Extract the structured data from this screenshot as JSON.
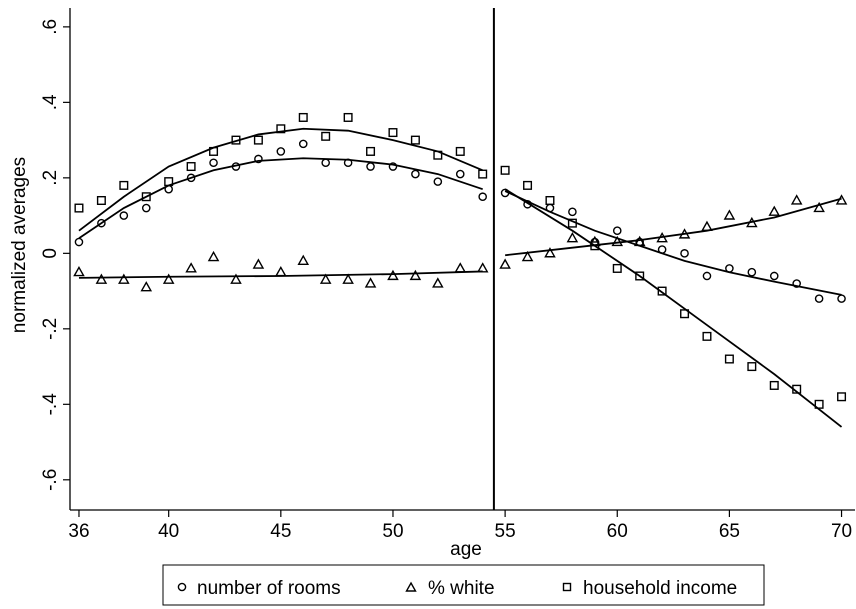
{
  "chart_data": {
    "type": "scatter",
    "xlabel": "age",
    "ylabel": "normalized averages",
    "xlim": [
      35.6,
      70.6
    ],
    "ylim": [
      -0.68,
      0.65
    ],
    "x_ticks": [
      40,
      45,
      50,
      55,
      60,
      65,
      70
    ],
    "x_tick_labels": [
      "40",
      "45",
      "50",
      "55",
      "60",
      "65",
      "70"
    ],
    "x_start_label": "36",
    "y_ticks": [
      -0.6,
      -0.4,
      -0.2,
      0,
      0.2,
      0.4,
      0.6
    ],
    "y_tick_labels": [
      "-.6",
      "-.4",
      "-.2",
      "0",
      ".2",
      ".4",
      ".6"
    ],
    "cutoff_x": 54.5,
    "grid": false,
    "legend_position": "bottom",
    "series": [
      {
        "name": "number of rooms",
        "marker": "circle",
        "x": [
          36,
          37,
          38,
          39,
          40,
          41,
          42,
          43,
          44,
          45,
          46,
          47,
          48,
          49,
          50,
          51,
          52,
          53,
          54,
          55,
          56,
          57,
          58,
          59,
          60,
          61,
          62,
          63,
          64,
          65,
          66,
          67,
          68,
          69,
          70
        ],
        "y": [
          0.03,
          0.08,
          0.1,
          0.12,
          0.17,
          0.2,
          0.24,
          0.23,
          0.25,
          0.27,
          0.29,
          0.24,
          0.24,
          0.23,
          0.23,
          0.21,
          0.19,
          0.21,
          0.15,
          0.16,
          0.13,
          0.12,
          0.11,
          0.03,
          0.06,
          0.03,
          0.01,
          0.0,
          -0.06,
          -0.04,
          -0.05,
          -0.06,
          -0.08,
          -0.12,
          -0.12
        ]
      },
      {
        "name": "% white",
        "marker": "triangle",
        "x": [
          36,
          37,
          38,
          39,
          40,
          41,
          42,
          43,
          44,
          45,
          46,
          47,
          48,
          49,
          50,
          51,
          52,
          53,
          54,
          55,
          56,
          57,
          58,
          59,
          60,
          61,
          62,
          63,
          64,
          65,
          66,
          67,
          68,
          69,
          70
        ],
        "y": [
          -0.05,
          -0.07,
          -0.07,
          -0.09,
          -0.07,
          -0.04,
          -0.01,
          -0.07,
          -0.03,
          -0.05,
          -0.02,
          -0.07,
          -0.07,
          -0.08,
          -0.06,
          -0.06,
          -0.08,
          -0.04,
          -0.04,
          -0.03,
          -0.01,
          0.0,
          0.04,
          0.03,
          0.03,
          0.03,
          0.04,
          0.05,
          0.07,
          0.1,
          0.08,
          0.11,
          0.14,
          0.12,
          0.14
        ]
      },
      {
        "name": "household income",
        "marker": "square",
        "x": [
          36,
          37,
          38,
          39,
          40,
          41,
          42,
          43,
          44,
          45,
          46,
          47,
          48,
          49,
          50,
          51,
          52,
          53,
          54,
          55,
          56,
          57,
          58,
          59,
          60,
          61,
          62,
          63,
          64,
          65,
          66,
          67,
          68,
          69,
          70
        ],
        "y": [
          0.12,
          0.14,
          0.18,
          0.15,
          0.19,
          0.23,
          0.27,
          0.3,
          0.3,
          0.33,
          0.36,
          0.31,
          0.36,
          0.27,
          0.32,
          0.3,
          0.26,
          0.27,
          0.21,
          0.22,
          0.18,
          0.14,
          0.08,
          0.02,
          -0.04,
          -0.06,
          -0.1,
          -0.16,
          -0.22,
          -0.28,
          -0.3,
          -0.35,
          -0.36,
          -0.4,
          -0.38
        ]
      }
    ],
    "fit_lines": [
      {
        "series": "number of rooms",
        "segment": "left",
        "x": [
          36,
          38,
          40,
          42,
          44,
          46,
          48,
          50,
          52,
          54
        ],
        "y": [
          0.04,
          0.12,
          0.18,
          0.22,
          0.245,
          0.252,
          0.248,
          0.235,
          0.21,
          0.17
        ]
      },
      {
        "series": "number of rooms",
        "segment": "right",
        "x": [
          55,
          57,
          59,
          61,
          63,
          65,
          67,
          70
        ],
        "y": [
          0.165,
          0.11,
          0.06,
          0.02,
          -0.02,
          -0.05,
          -0.075,
          -0.11
        ]
      },
      {
        "series": "% white",
        "segment": "left",
        "x": [
          36,
          40,
          45,
          50,
          54
        ],
        "y": [
          -0.065,
          -0.062,
          -0.06,
          -0.055,
          -0.048
        ]
      },
      {
        "series": "% white",
        "segment": "right",
        "x": [
          55,
          58,
          61,
          64,
          67,
          70
        ],
        "y": [
          -0.005,
          0.015,
          0.035,
          0.06,
          0.095,
          0.145
        ]
      },
      {
        "series": "household income",
        "segment": "left",
        "x": [
          36,
          38,
          40,
          42,
          44,
          46,
          48,
          50,
          52,
          54
        ],
        "y": [
          0.06,
          0.15,
          0.23,
          0.28,
          0.315,
          0.33,
          0.325,
          0.3,
          0.27,
          0.22
        ]
      },
      {
        "series": "household income",
        "segment": "right",
        "x": [
          55,
          58,
          61,
          64,
          67,
          70
        ],
        "y": [
          0.17,
          0.06,
          -0.06,
          -0.19,
          -0.32,
          -0.46
        ]
      }
    ]
  }
}
